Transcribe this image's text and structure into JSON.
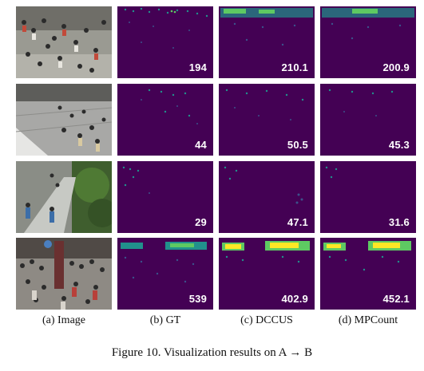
{
  "columns": [
    {
      "caption": "(a) Image",
      "type": "image"
    },
    {
      "caption": "(b) GT",
      "type": "density",
      "values": [
        "194",
        "44",
        "29",
        "539"
      ]
    },
    {
      "caption": "(c) DCCUS",
      "type": "density",
      "values": [
        "210.1",
        "50.5",
        "47.1",
        "402.9"
      ]
    },
    {
      "caption": "(d) MPCount",
      "type": "density",
      "values": [
        "200.9",
        "45.3",
        "31.6",
        "452.1"
      ]
    }
  ],
  "figure_caption": "Figure 10. Visualization results on A → B",
  "colors": {
    "density_bg": "#440154",
    "density_low": "#3b528b",
    "density_mid": "#21918c",
    "density_high": "#5ec962",
    "density_peak": "#fde725"
  }
}
